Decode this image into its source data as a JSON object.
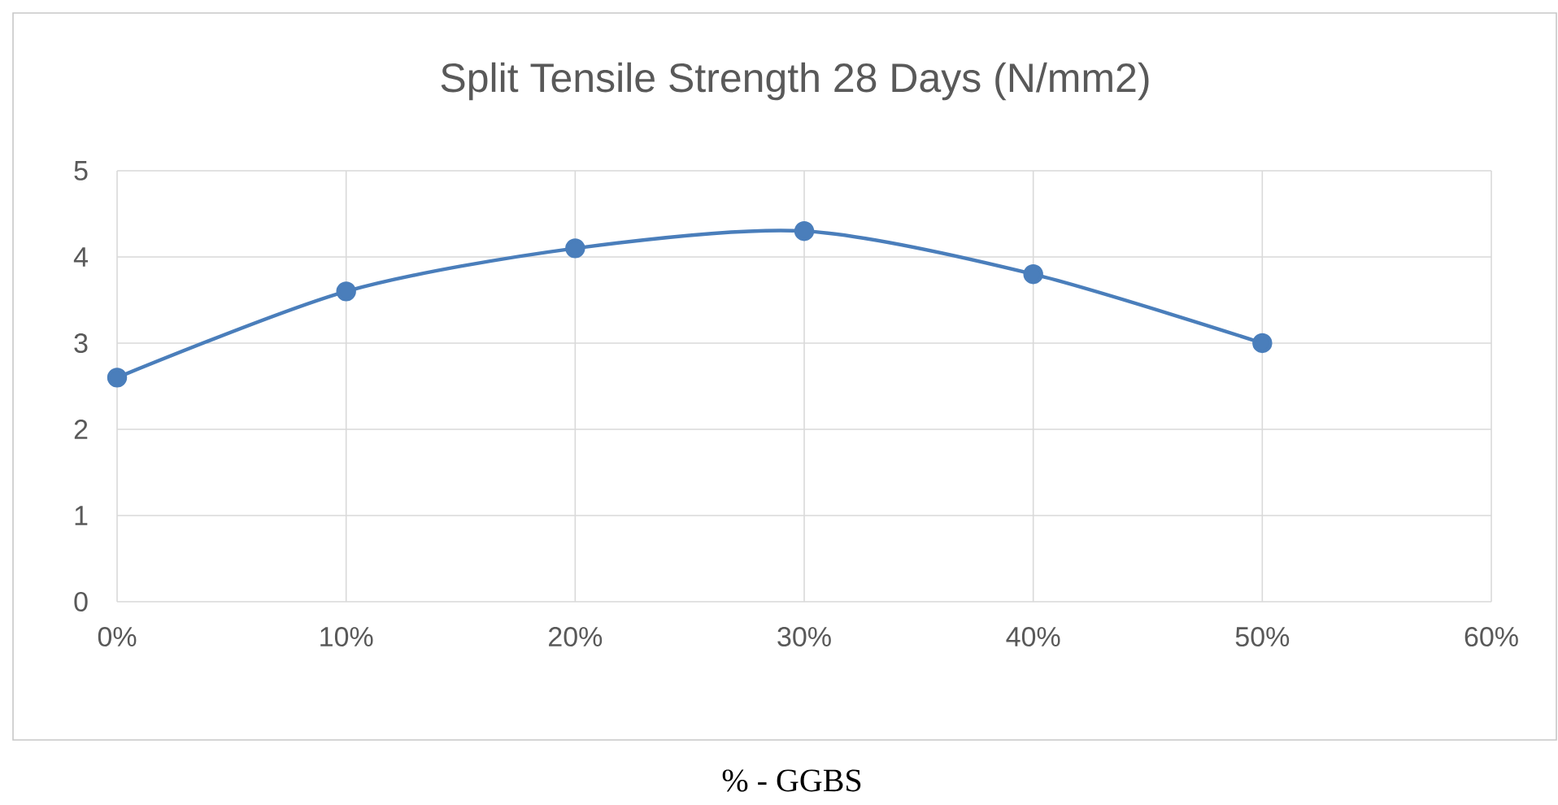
{
  "chart_data": {
    "type": "line",
    "title": "Split Tensile Strength  28 Days (N/mm2)",
    "xlabel": "% - GGBS",
    "x": [
      0,
      10,
      20,
      30,
      40,
      50
    ],
    "series": [
      {
        "color": "#4a7ebb",
        "values": [
          2.6,
          3.6,
          4.1,
          4.3,
          3.8,
          3.0
        ]
      }
    ],
    "xlim": [
      0,
      60
    ],
    "ylim": [
      0,
      5
    ],
    "xticks": [
      {
        "value": 0,
        "label": "0%"
      },
      {
        "value": 10,
        "label": "10%"
      },
      {
        "value": 20,
        "label": "20%"
      },
      {
        "value": 30,
        "label": "30%"
      },
      {
        "value": 40,
        "label": "40%"
      },
      {
        "value": 50,
        "label": "50%"
      },
      {
        "value": 60,
        "label": "60%"
      }
    ],
    "yticks": [
      0,
      1,
      2,
      3,
      4,
      5
    ],
    "grid": true,
    "marker": "circle",
    "line_style": "solid"
  }
}
